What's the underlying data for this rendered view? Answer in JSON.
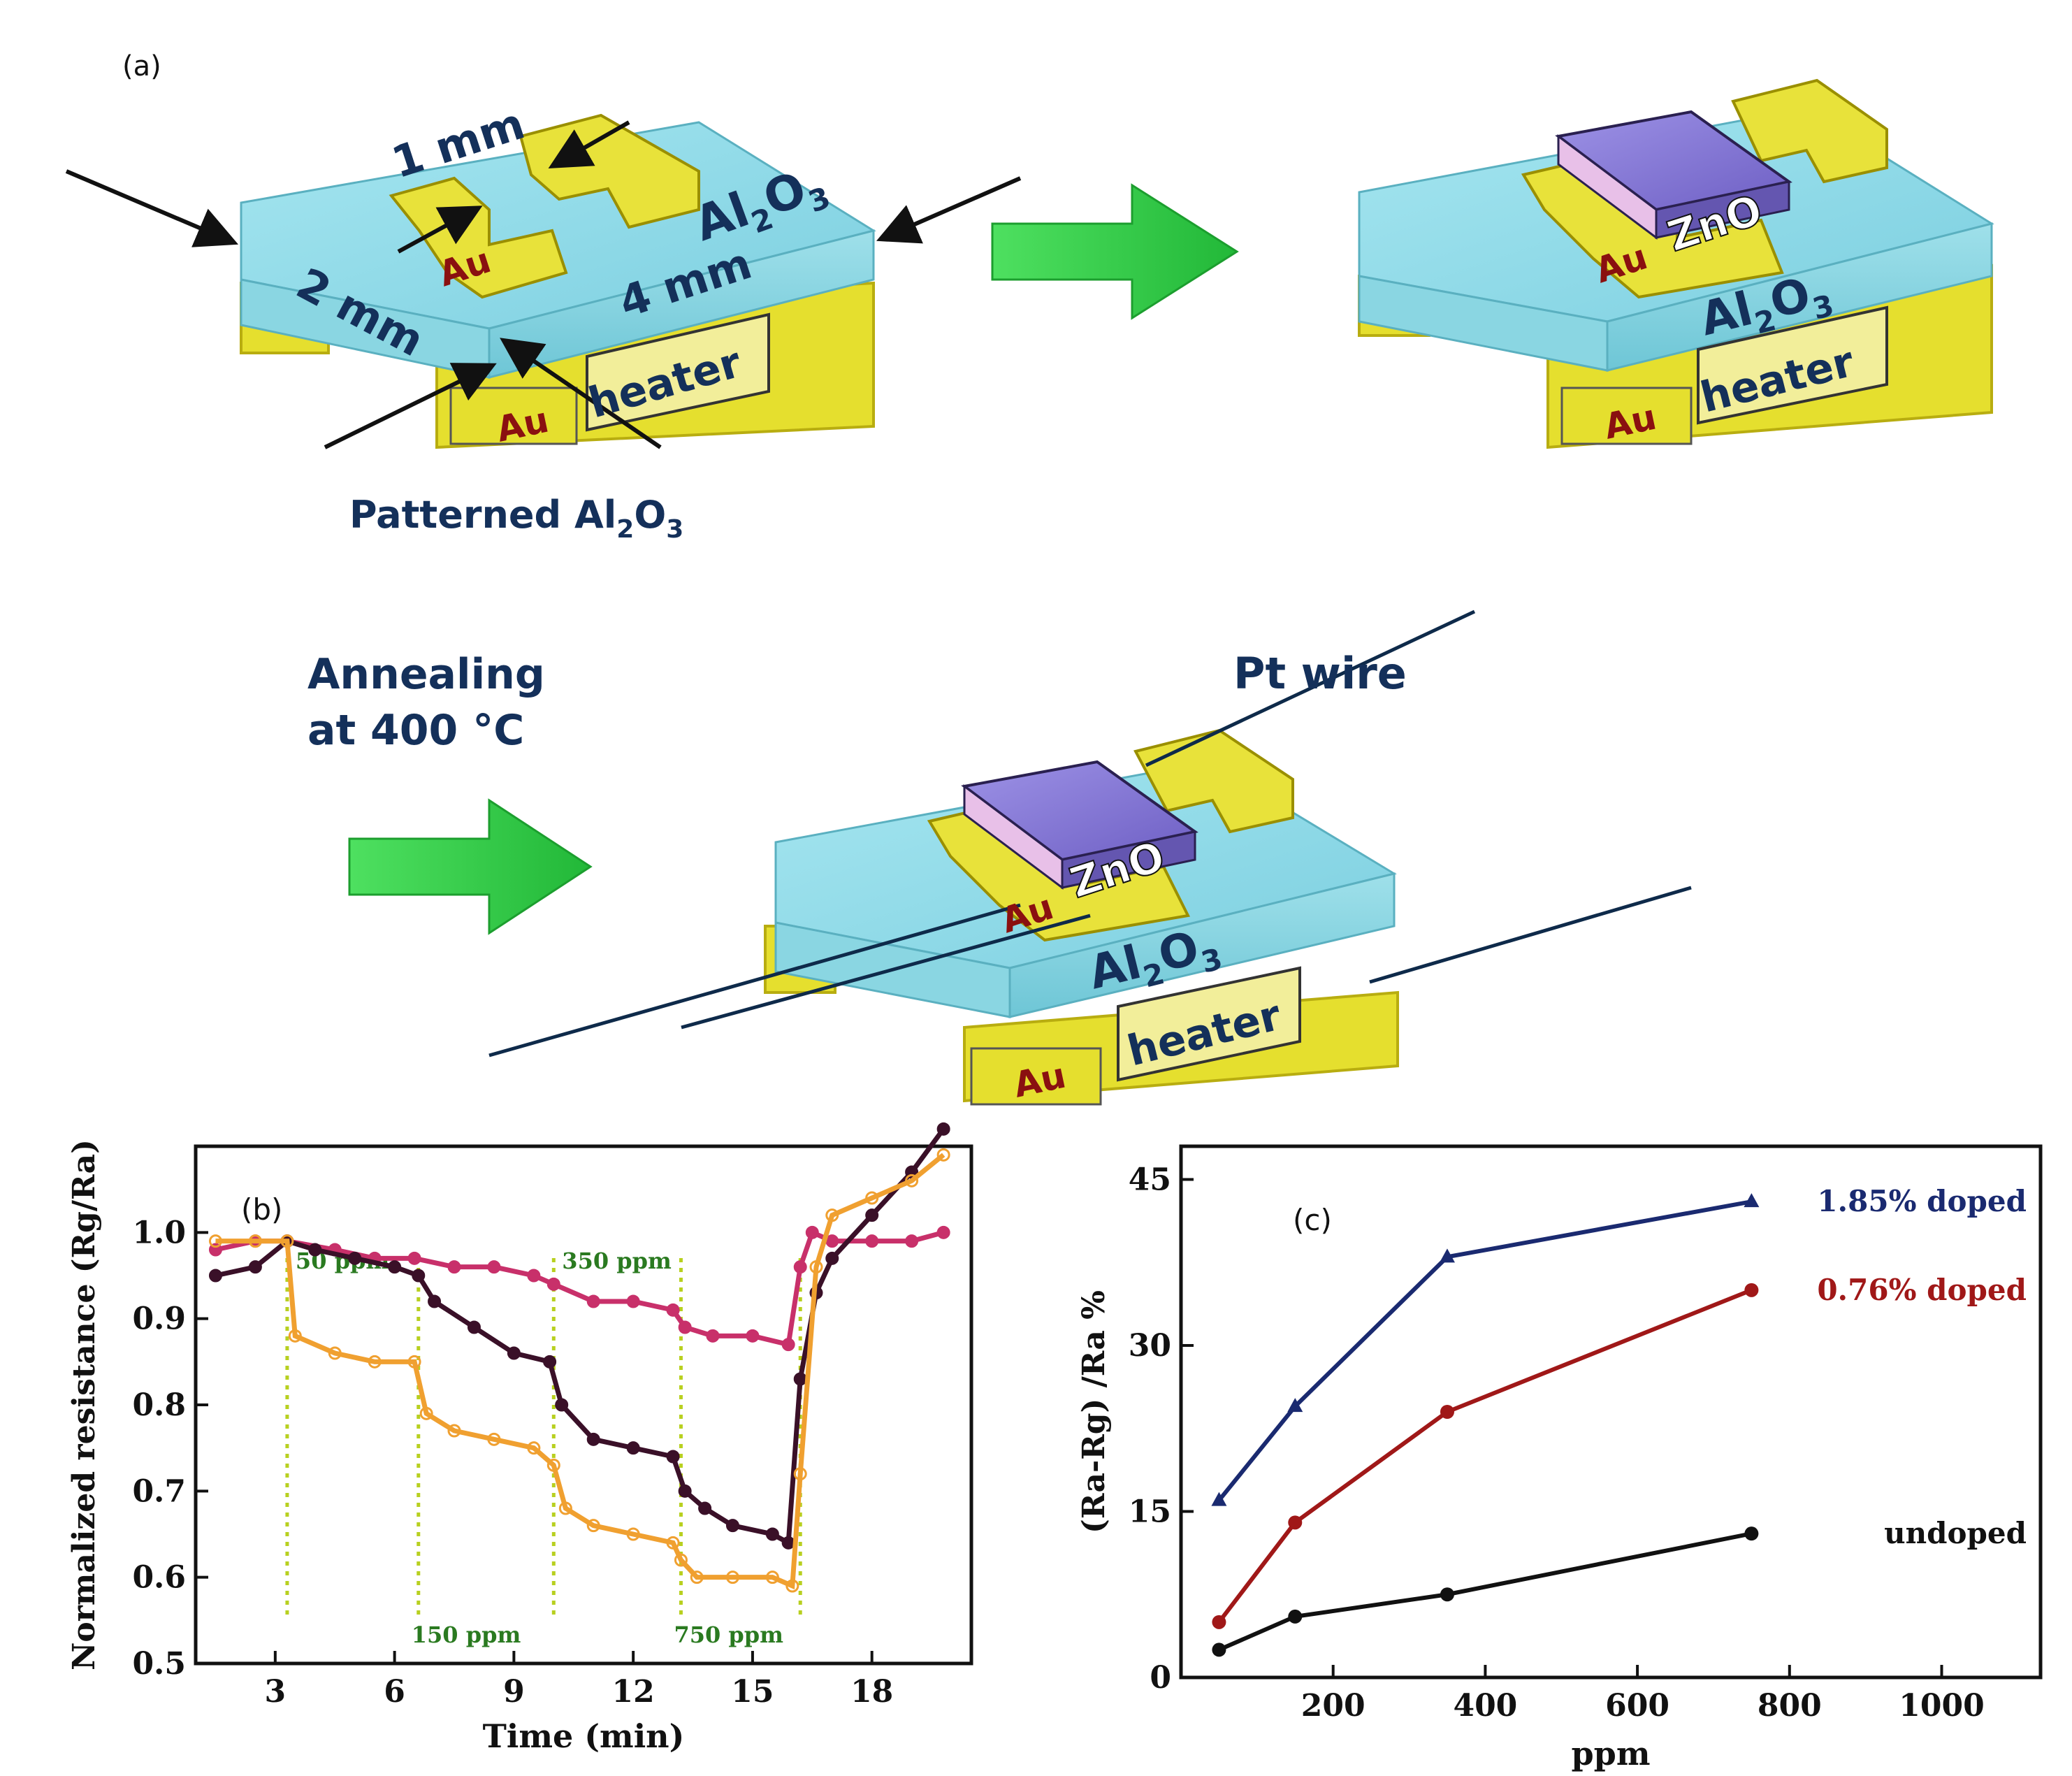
{
  "panel_a": {
    "label": "(a)",
    "device1": {
      "dim_1": "1 mm",
      "dim_2": "2 mm",
      "dim_4": "4 mm",
      "substrate": "Al",
      "substrate_sub": "2",
      "substrate_o": "O",
      "substrate_sub2": "3",
      "electrode": "Au",
      "heater_au": "Au",
      "heater": "heater",
      "caption_main": "Patterned Al",
      "caption_sub": "2",
      "caption_o": "O",
      "caption_sub2": "3"
    },
    "device2": {
      "oxide": "ZnO",
      "electrode": "Au",
      "substrate": "Al",
      "substrate_sub": "2",
      "substrate_o": "O",
      "substrate_sub2": "3",
      "heater_au": "Au",
      "heater": "heater"
    },
    "anneal_line1": "Annealing",
    "anneal_line2": "at 400 °C",
    "device3": {
      "wire": "Pt wire",
      "oxide": "ZnO",
      "electrode": "Au",
      "substrate": "Al",
      "substrate_sub": "2",
      "substrate_o": "O",
      "substrate_sub2": "3",
      "heater_au": "Au",
      "heater": "heater"
    },
    "colors": {
      "block": "#8fd8e6",
      "gold": "#e8e23a",
      "arrow": "#34d04a",
      "zno": "#8c7fd8",
      "line": "#0e2a4a"
    }
  },
  "chart_data": [
    {
      "panel": "(b)",
      "type": "line",
      "xlabel": "Time (min)",
      "ylabel": "Normalized resistance (Rg/Ra)",
      "xlim": [
        1,
        20.5
      ],
      "ylim": [
        0.5,
        1.1
      ],
      "xticks": [
        "3",
        "6",
        "9",
        "12",
        "15",
        "18"
      ],
      "xtick_values": [
        3,
        6,
        9,
        12,
        15,
        18
      ],
      "yticks": [
        "0.5",
        "0.6",
        "0.7",
        "0.8",
        "0.9",
        "1.0"
      ],
      "ytick_values": [
        0.5,
        0.6,
        0.7,
        0.8,
        0.9,
        1.0
      ],
      "annotations": [
        {
          "text": "50 ppm",
          "x": 3.3,
          "pos": "top"
        },
        {
          "text": "150 ppm",
          "x": 6.6,
          "pos": "bottom"
        },
        {
          "text": "350 ppm",
          "x": 10.0,
          "pos": "top"
        },
        {
          "text": "750 ppm",
          "x": 13.2,
          "pos": "bottom"
        }
      ],
      "switch_lines": [
        3.3,
        6.6,
        10.0,
        13.2,
        16.2
      ],
      "series": [
        {
          "color": "#c8306a",
          "x": [
            1.5,
            2.5,
            3.3,
            4.5,
            5.5,
            6.5,
            7.5,
            8.5,
            9.5,
            10.0,
            11.0,
            12.0,
            13.0,
            13.3,
            14.0,
            15.0,
            15.9,
            16.2,
            16.5,
            17.0,
            18.0,
            19.0,
            19.8
          ],
          "values": [
            0.98,
            0.99,
            0.99,
            0.98,
            0.97,
            0.97,
            0.96,
            0.96,
            0.95,
            0.94,
            0.92,
            0.92,
            0.91,
            0.89,
            0.88,
            0.88,
            0.87,
            0.96,
            1.0,
            0.99,
            0.99,
            0.99,
            1.0
          ]
        },
        {
          "color": "#3a1028",
          "x": [
            1.5,
            2.5,
            3.3,
            4.0,
            5.0,
            6.0,
            6.6,
            7.0,
            8.0,
            9.0,
            9.9,
            10.2,
            11.0,
            12.0,
            13.0,
            13.3,
            13.8,
            14.5,
            15.5,
            15.9,
            16.2,
            16.6,
            17.0,
            18.0,
            19.0,
            19.8
          ],
          "values": [
            0.95,
            0.96,
            0.99,
            0.98,
            0.97,
            0.96,
            0.95,
            0.92,
            0.89,
            0.86,
            0.85,
            0.8,
            0.76,
            0.75,
            0.74,
            0.7,
            0.68,
            0.66,
            0.65,
            0.64,
            0.83,
            0.93,
            0.97,
            1.02,
            1.07,
            1.12
          ]
        },
        {
          "color": "#f0a030",
          "x": [
            1.5,
            2.5,
            3.3,
            3.5,
            4.5,
            5.5,
            6.5,
            6.8,
            7.5,
            8.5,
            9.5,
            10.0,
            10.3,
            11.0,
            12.0,
            13.0,
            13.2,
            13.6,
            14.5,
            15.5,
            16.0,
            16.2,
            16.6,
            17.0,
            18.0,
            19.0,
            19.8
          ],
          "values": [
            0.99,
            0.99,
            0.99,
            0.88,
            0.86,
            0.85,
            0.85,
            0.79,
            0.77,
            0.76,
            0.75,
            0.73,
            0.68,
            0.66,
            0.65,
            0.64,
            0.62,
            0.6,
            0.6,
            0.6,
            0.59,
            0.72,
            0.96,
            1.02,
            1.04,
            1.06,
            1.09
          ]
        }
      ]
    },
    {
      "panel": "(c)",
      "type": "line",
      "xlabel": "ppm",
      "ylabel": "(Ra-Rg) /Ra %",
      "xlim": [
        0,
        1130
      ],
      "ylim": [
        0,
        48
      ],
      "xticks": [
        "200",
        "400",
        "600",
        "800",
        "1000"
      ],
      "xtick_values": [
        200,
        400,
        600,
        800,
        1000
      ],
      "yticks": [
        "0",
        "15",
        "30",
        "45"
      ],
      "ytick_values": [
        0,
        15,
        30,
        45
      ],
      "x": [
        50,
        150,
        350,
        750
      ],
      "series": [
        {
          "name": "1.85% doped",
          "color": "#1a2a70",
          "marker": "triangle",
          "values": [
            16,
            24.5,
            38,
            43
          ]
        },
        {
          "name": "0.76% doped",
          "color": "#a01818",
          "marker": "circle",
          "values": [
            5,
            14,
            24,
            35
          ]
        },
        {
          "name": "undoped",
          "color": "#111111",
          "marker": "circle",
          "values": [
            2.5,
            5.5,
            7.5,
            13
          ]
        }
      ]
    }
  ]
}
